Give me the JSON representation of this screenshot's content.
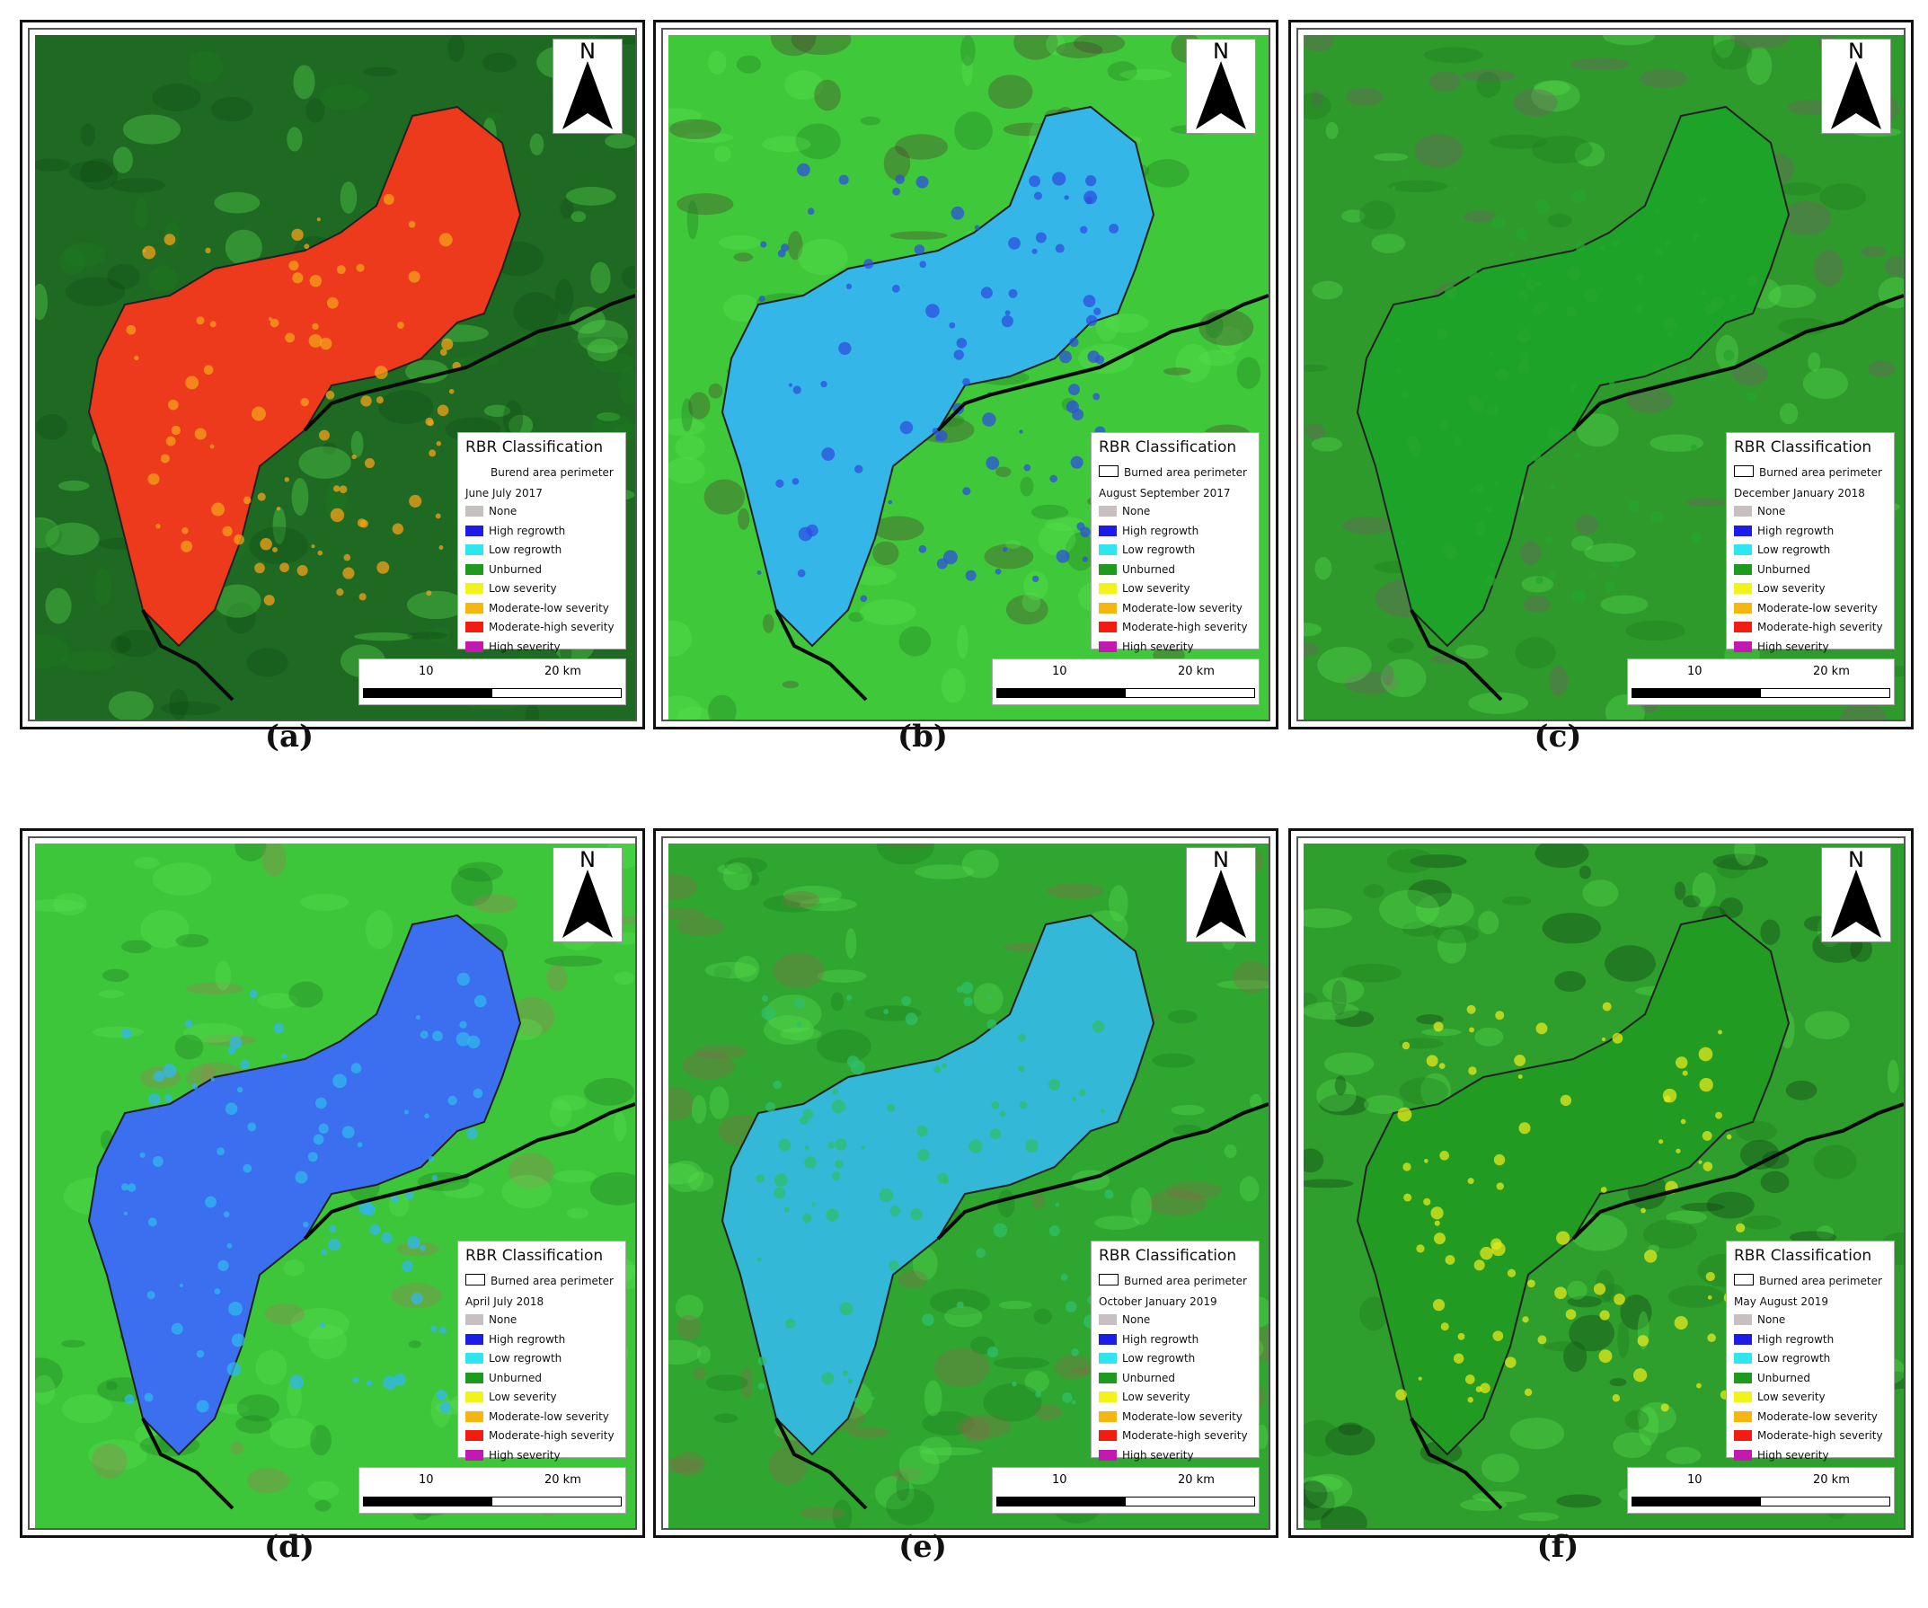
{
  "panels": [
    {
      "caption": "(a)",
      "legend_title": "RBR Classification",
      "perimeter_label": "Burend area perimeter",
      "period": "June July 2017",
      "bg": "#1f6a22",
      "burn": "#ee3a1c",
      "burn2": "#f6a21a",
      "dark": "#0e4a14"
    },
    {
      "caption": "(b)",
      "legend_title": "RBR Classification",
      "perimeter_label": "Burned area perimeter",
      "period": "August September 2017",
      "bg": "#3fc93a",
      "burn": "#35b6e8",
      "burn2": "#2e4fe0",
      "dark": "#4a3a2e"
    },
    {
      "caption": "(c)",
      "legend_title": "RBR Classification",
      "perimeter_label": "Burned area perimeter",
      "period": "December January 2018",
      "bg": "#2f9a2c",
      "burn": "#1ea329",
      "burn2": "#25a52c",
      "dark": "#7a5a6e"
    },
    {
      "caption": "(d)",
      "legend_title": "RBR Classification",
      "perimeter_label": "Burned area perimeter",
      "period": "April July 2018",
      "bg": "#3dc63a",
      "burn": "#3b6ff0",
      "burn2": "#31b6ee",
      "dark": "#a47a5a"
    },
    {
      "caption": "(e)",
      "legend_title": "RBR Classification",
      "perimeter_label": "Burned area perimeter",
      "period": "October January 2019",
      "bg": "#2fa630",
      "burn": "#34b8d8",
      "burn2": "#2fbf6a",
      "dark": "#8a6a4a"
    },
    {
      "caption": "(f)",
      "legend_title": "RBR Classification",
      "perimeter_label": "Burned area perimeter",
      "period": "May August 2019",
      "bg": "#2e9e2c",
      "burn": "#229b22",
      "burn2": "#e4e81c",
      "dark": "#0c3a10"
    }
  ],
  "legend_items": [
    {
      "label": "None",
      "color": "#c8bfc0"
    },
    {
      "label": "High regrowth",
      "color": "#1c1ce6"
    },
    {
      "label": "Low regrowth",
      "color": "#2fe6ee"
    },
    {
      "label": "Unburned",
      "color": "#1e9a1e"
    },
    {
      "label": "Low severity",
      "color": "#f3f31c"
    },
    {
      "label": "Moderate-low severity",
      "color": "#f6b612"
    },
    {
      "label": "Moderate-high severity",
      "color": "#f21c12"
    },
    {
      "label": "High severity",
      "color": "#c21ab0"
    }
  ],
  "north_label": "N",
  "scale": {
    "label_10": "10",
    "label_20": "20 km"
  }
}
